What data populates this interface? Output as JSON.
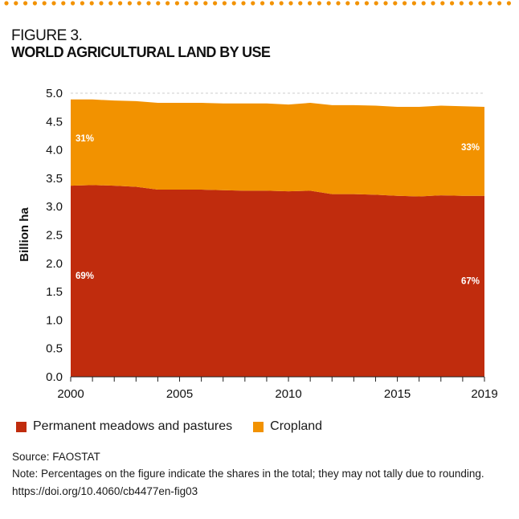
{
  "figure_label": "FIGURE 3.",
  "figure_title": "WORLD AGRICULTURAL LAND BY USE",
  "colors": {
    "pastures": "#c02c0d",
    "cropland": "#f29200",
    "dots": "#f29200",
    "gridline": "#cccccc"
  },
  "chart_data": {
    "type": "area",
    "stacked": true,
    "title": "WORLD AGRICULTURAL LAND BY USE",
    "xlabel": "",
    "ylabel": "Billion ha",
    "x": [
      2000,
      2001,
      2002,
      2003,
      2004,
      2005,
      2006,
      2007,
      2008,
      2009,
      2010,
      2011,
      2012,
      2013,
      2014,
      2015,
      2016,
      2017,
      2018,
      2019
    ],
    "x_ticks": [
      2000,
      2005,
      2010,
      2015,
      2019
    ],
    "x_tick_labels": [
      "2000",
      "2005",
      "2010",
      "2015",
      "2019"
    ],
    "xlim": [
      2000,
      2019
    ],
    "ylim": [
      0,
      5.0
    ],
    "y_ticks": [
      0.0,
      0.5,
      1.0,
      1.5,
      2.0,
      2.5,
      3.0,
      3.5,
      4.0,
      4.5,
      5.0
    ],
    "y_tick_labels": [
      "0.0",
      "0.5",
      "1.0",
      "1.5",
      "2.0",
      "2.5",
      "3.0",
      "3.5",
      "4.0",
      "4.5",
      "5.0"
    ],
    "grid": "dashed line at top (5.0) only",
    "series": [
      {
        "name": "Permanent meadows and pastures",
        "color": "#c02c0d",
        "values": [
          3.37,
          3.38,
          3.37,
          3.35,
          3.3,
          3.3,
          3.3,
          3.29,
          3.28,
          3.28,
          3.27,
          3.28,
          3.22,
          3.22,
          3.21,
          3.19,
          3.18,
          3.2,
          3.19,
          3.19
        ]
      },
      {
        "name": "Cropland",
        "color": "#f29200",
        "values": [
          1.52,
          1.51,
          1.5,
          1.51,
          1.53,
          1.53,
          1.53,
          1.53,
          1.54,
          1.54,
          1.53,
          1.55,
          1.57,
          1.57,
          1.57,
          1.57,
          1.58,
          1.58,
          1.58,
          1.57
        ]
      }
    ],
    "annotations": [
      {
        "text": "31%",
        "series": "Cropland",
        "position": "start"
      },
      {
        "text": "33%",
        "series": "Cropland",
        "position": "end"
      },
      {
        "text": "69%",
        "series": "Permanent meadows and pastures",
        "position": "start"
      },
      {
        "text": "67%",
        "series": "Permanent meadows and pastures",
        "position": "end"
      }
    ],
    "legend": {
      "placement": "bottom-left",
      "entries": [
        "Permanent meadows and pastures",
        "Cropland"
      ]
    }
  },
  "footer": {
    "source": "Source: FAOSTAT",
    "note": "Note: Percentages on the figure indicate the shares in the total; they may not tally due to rounding.",
    "doi": "https://doi.org/10.4060/cb4477en-fig03"
  }
}
